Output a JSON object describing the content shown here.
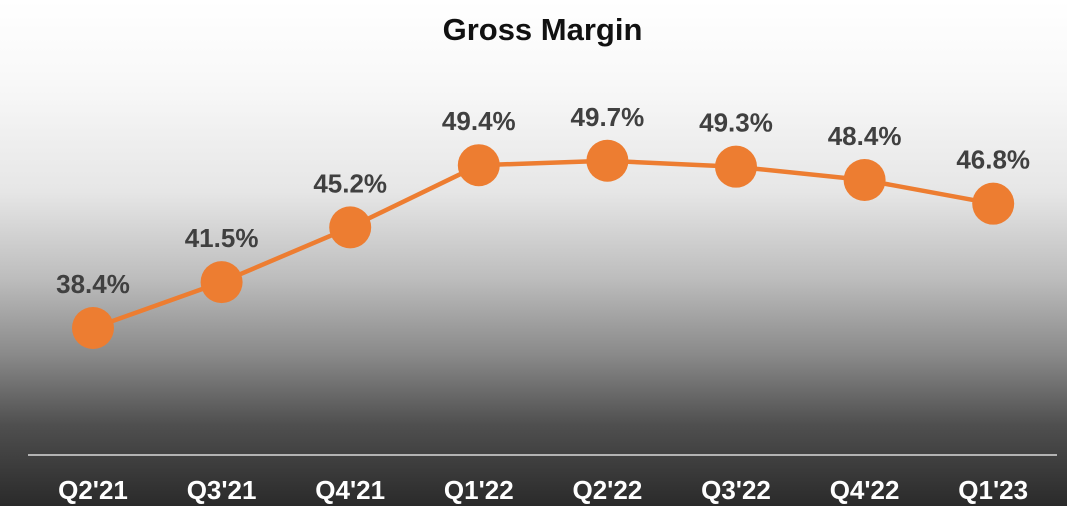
{
  "chart_data": {
    "type": "line",
    "title": "Gross Margin",
    "xlabel": "",
    "ylabel": "",
    "categories": [
      "Q2'21",
      "Q3'21",
      "Q4'21",
      "Q1'22",
      "Q2'22",
      "Q3'22",
      "Q4'22",
      "Q1'23"
    ],
    "series": [
      {
        "values": [
          38.4,
          41.5,
          45.2,
          49.4,
          49.7,
          49.3,
          48.4,
          46.8
        ],
        "labels": [
          "38.4%",
          "41.5%",
          "45.2%",
          "49.4%",
          "49.7%",
          "49.3%",
          "48.4%",
          "46.8%"
        ],
        "color": "#ED7D31"
      }
    ],
    "grid": false,
    "legend": "none"
  }
}
